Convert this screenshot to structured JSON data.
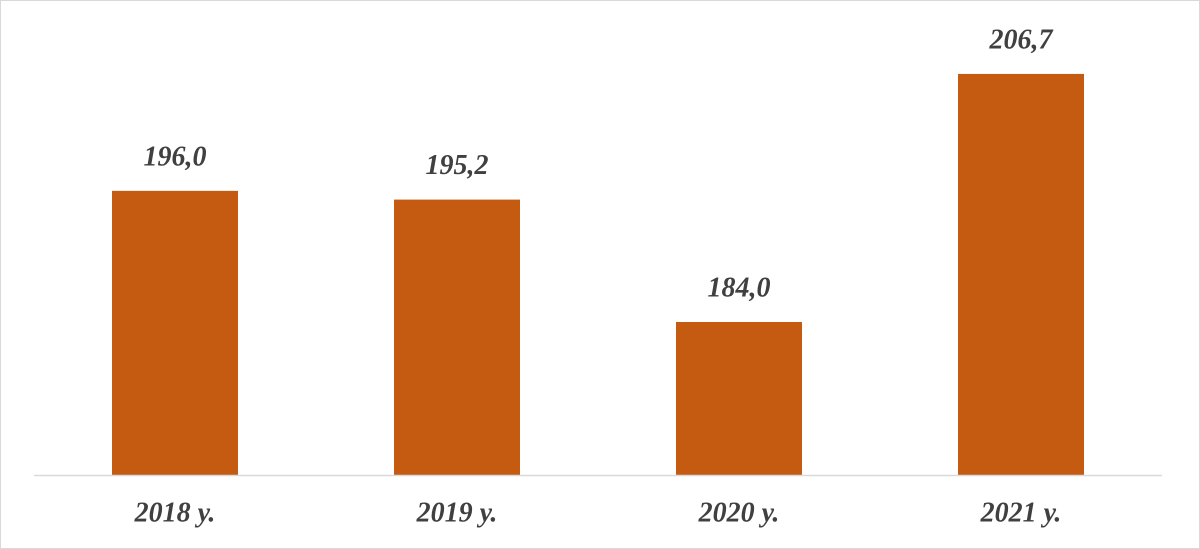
{
  "chart_data": {
    "type": "bar",
    "categories": [
      "2018 у.",
      "2019 у.",
      "2020 у.",
      "2021 у."
    ],
    "values": [
      196.0,
      195.2,
      184.0,
      206.7
    ],
    "value_labels": [
      "196,0",
      "195,2",
      "184,0",
      "206,7"
    ],
    "color": "#c55a11",
    "ylim": [
      170,
      212
    ]
  }
}
